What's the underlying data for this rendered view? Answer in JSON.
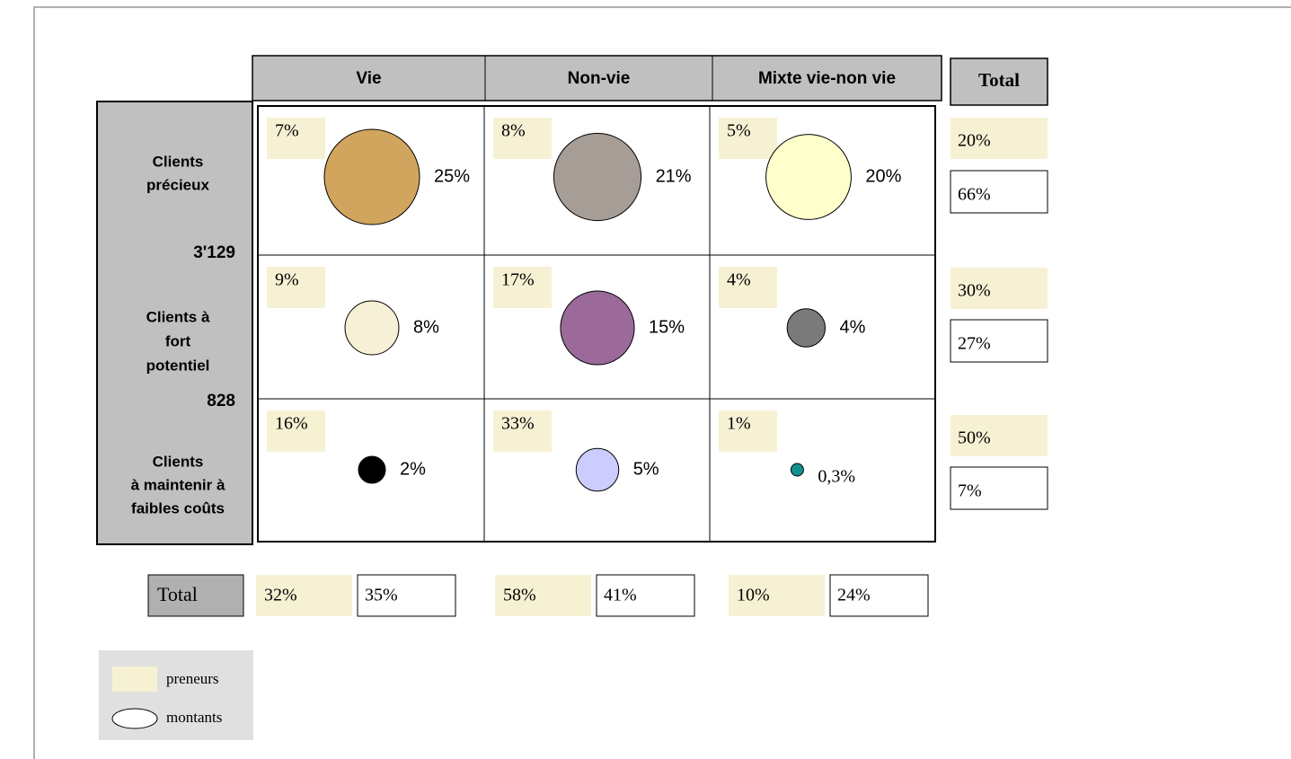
{
  "columns": [
    "Vie",
    "Non-vie",
    "Mixte vie-non vie"
  ],
  "total_header": "Total",
  "rows": [
    {
      "label": [
        "Clients",
        "précieux"
      ],
      "count": "3'129",
      "total_preneurs": "20%",
      "total_montants": "66%",
      "cells": [
        {
          "preneurs": "7%",
          "montants": "25%",
          "color": "#d2a55e"
        },
        {
          "preneurs": "8%",
          "montants": "21%",
          "color": "#a69d97"
        },
        {
          "preneurs": "5%",
          "montants": "20%",
          "color": "#ffffcc"
        }
      ]
    },
    {
      "label": [
        "Clients à",
        "fort",
        "potentiel"
      ],
      "count": "828",
      "total_preneurs": "30%",
      "total_montants": "27%",
      "cells": [
        {
          "preneurs": "9%",
          "montants": "8%",
          "color": "#f5f0d6"
        },
        {
          "preneurs": "17%",
          "montants": "15%",
          "color": "#9b6a9b"
        },
        {
          "preneurs": "4%",
          "montants": "4%",
          "color": "#7a7a7a"
        }
      ]
    },
    {
      "label": [
        "Clients",
        "à maintenir à",
        "faibles coûts"
      ],
      "total_preneurs": "50%",
      "total_montants": "7%",
      "cells": [
        {
          "preneurs": "16%",
          "montants": "2%",
          "color": "#000000"
        },
        {
          "preneurs": "33%",
          "montants": "5%",
          "color": "#ccccff"
        },
        {
          "preneurs": "1%",
          "montants": "0,3%",
          "color": "#138f8f"
        }
      ]
    }
  ],
  "bottom": {
    "label": "Total",
    "totals": [
      {
        "preneurs": "32%",
        "montants": "35%"
      },
      {
        "preneurs": "58%",
        "montants": "41%"
      },
      {
        "preneurs": "10%",
        "montants": "24%"
      }
    ]
  },
  "legend": {
    "preneurs": "preneurs",
    "montants": "montants"
  }
}
